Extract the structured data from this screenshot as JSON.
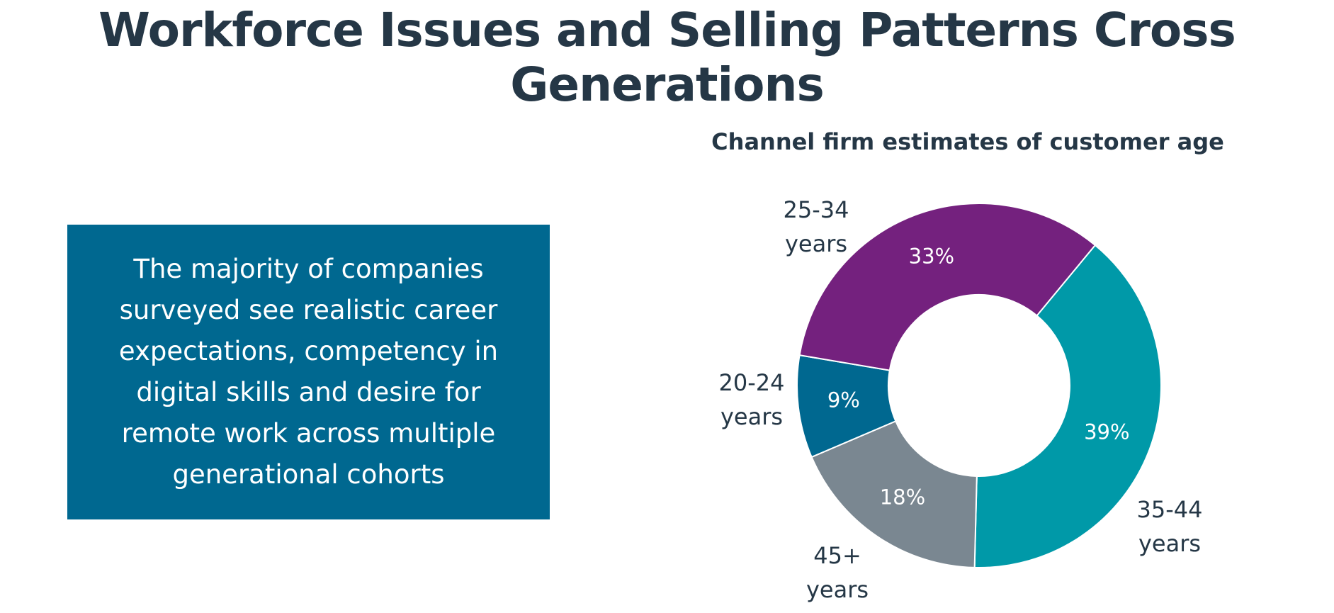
{
  "header": {
    "title": "Workforce Issues and Selling Patterns Cross Generations"
  },
  "callout": {
    "text": "The majority of companies surveyed see realistic career expectations, competency in digital skills and desire for remote work across multiple generational cohorts"
  },
  "chart_data": {
    "type": "donut",
    "title": "Channel firm estimates of customer age",
    "categories": [
      "35-44 years",
      "45+ years",
      "20-24 years",
      "25-34 years"
    ],
    "values": [
      39,
      18,
      9,
      33
    ],
    "value_labels": [
      "39%",
      "18%",
      "9%",
      "33%"
    ],
    "colors": [
      "#0099a8",
      "#7a8791",
      "#006890",
      "#74217e"
    ]
  }
}
